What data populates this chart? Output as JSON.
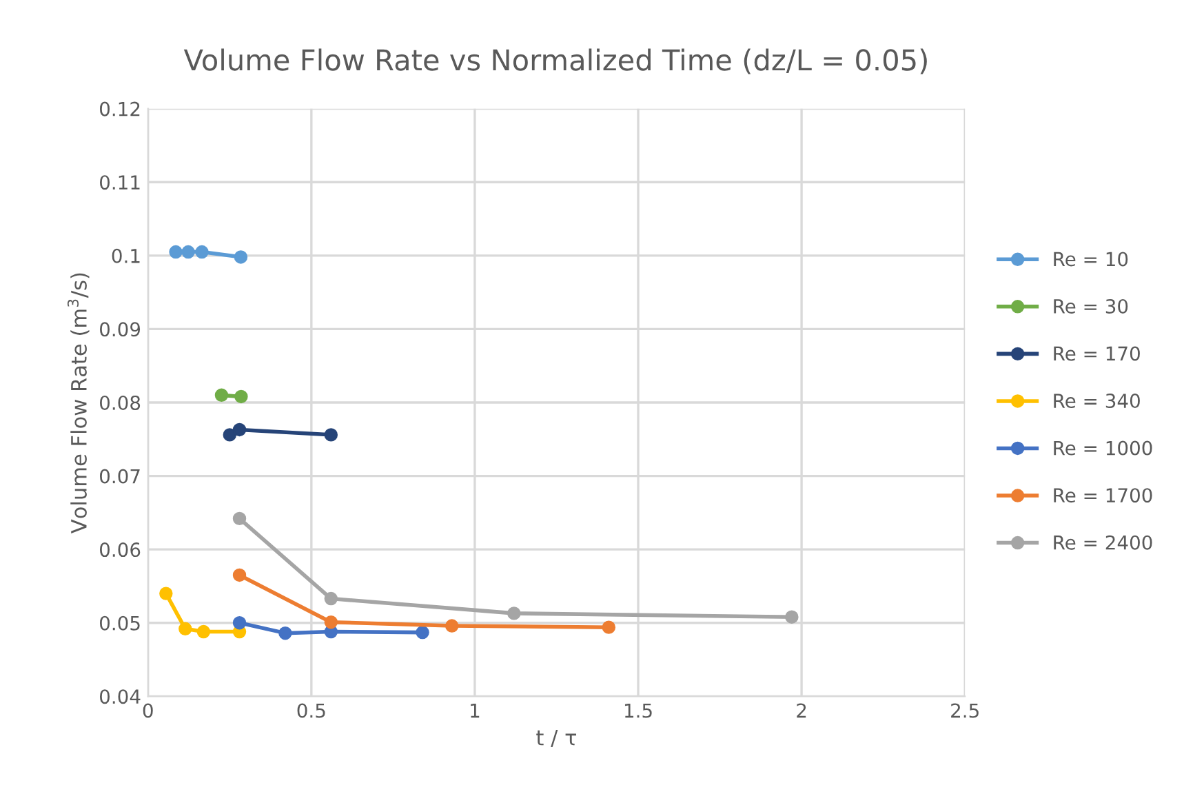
{
  "chart_data": {
    "type": "line",
    "title": "Volume Flow Rate vs Normalized Time (dz/L = 0.05)",
    "xlabel": "t / τ",
    "ylabel": "Volume Flow Rate (m$^{3}$/s)",
    "xlim": [
      0,
      2.5
    ],
    "xticks": [
      0,
      0.5,
      1,
      1.5,
      2,
      2.5
    ],
    "ylim": [
      0.04,
      0.12
    ],
    "yticks": [
      0.04,
      0.05,
      0.06,
      0.07,
      0.08,
      0.09,
      0.1,
      0.11,
      0.12
    ],
    "grid": true,
    "legend": "right",
    "marker": "circle",
    "line_style": "solid",
    "series": [
      {
        "name": "Re = 10",
        "color": "#5b9bd5",
        "x": [
          0.085,
          0.123,
          0.165,
          0.284
        ],
        "values": [
          0.1005,
          0.1005,
          0.1005,
          0.0998
        ]
      },
      {
        "name": "Re = 30",
        "color": "#70ad47",
        "x": [
          0.225,
          0.285
        ],
        "values": [
          0.081,
          0.0808
        ]
      },
      {
        "name": "Re = 170",
        "color": "#264478",
        "x": [
          0.25,
          0.28,
          0.56
        ],
        "values": [
          0.0756,
          0.0763,
          0.0756
        ]
      },
      {
        "name": "Re = 340",
        "color": "#ffc000",
        "x": [
          0.055,
          0.114,
          0.17,
          0.28
        ],
        "values": [
          0.054,
          0.0492,
          0.0488,
          0.0488
        ]
      },
      {
        "name": "Re = 1000",
        "color": "#4472c4",
        "x": [
          0.28,
          0.42,
          0.56,
          0.84
        ],
        "values": [
          0.05,
          0.0486,
          0.0488,
          0.0487
        ]
      },
      {
        "name": "Re = 1700",
        "color": "#ed7d31",
        "x": [
          0.28,
          0.56,
          0.93,
          1.41
        ],
        "values": [
          0.0565,
          0.0501,
          0.0496,
          0.0494
        ]
      },
      {
        "name": "Re = 2400",
        "color": "#a5a5a5",
        "x": [
          0.28,
          0.56,
          1.12,
          1.97
        ],
        "values": [
          0.0642,
          0.0533,
          0.0513,
          0.0508
        ]
      }
    ]
  }
}
